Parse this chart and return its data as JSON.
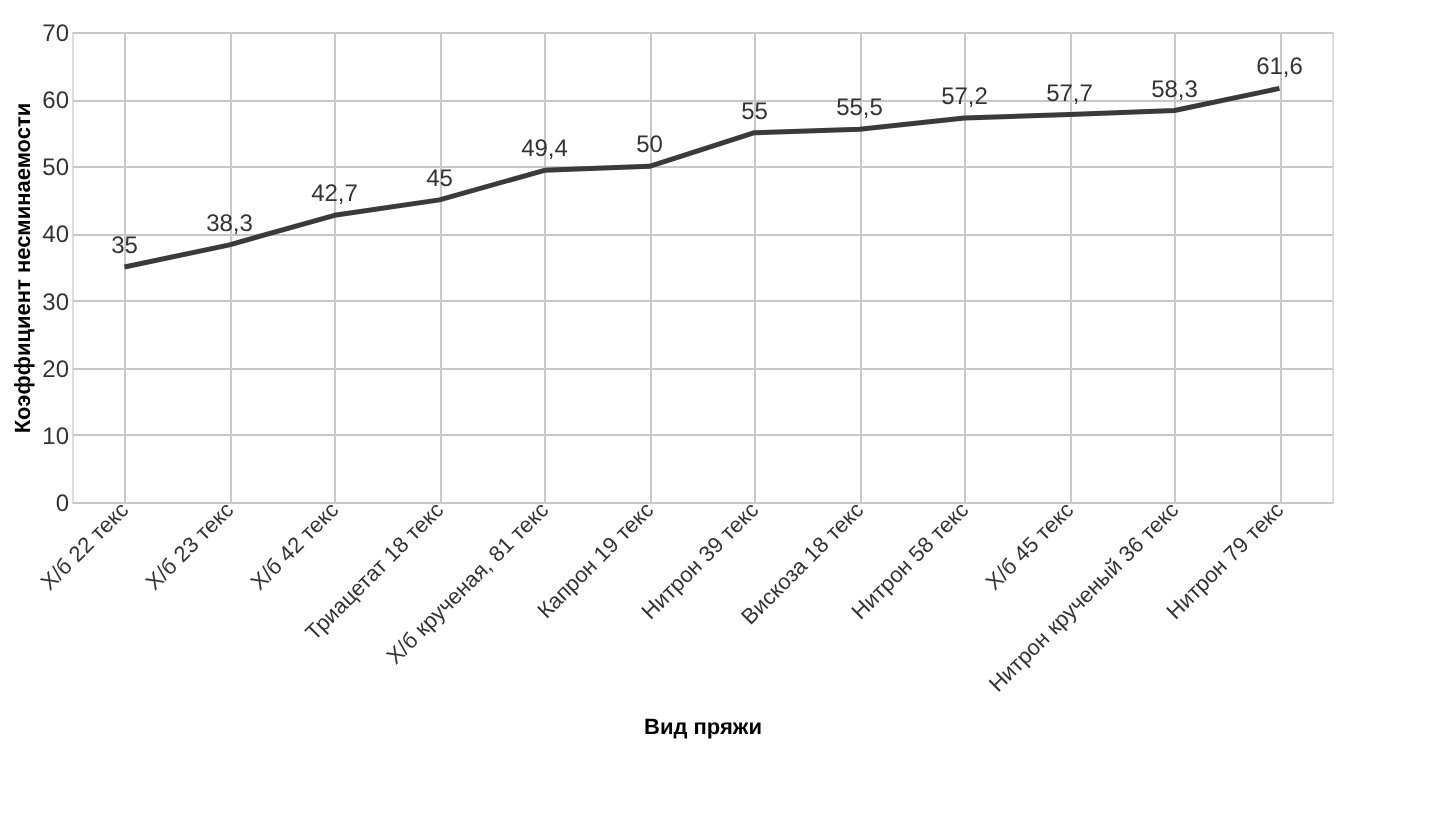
{
  "chart_data": {
    "type": "line",
    "xlabel": "Вид пряжи",
    "ylabel": "Коэффициент несминаемости",
    "categories": [
      "Х/б 22 текс",
      "Х/б 23 текс",
      "Х/б 42 текс",
      "Триацетат 18 текс",
      "Х/б крученая, 81 текс",
      "Капрон 19 текс",
      "Нитрон 39 текс",
      "Вискоза 18 текс",
      "Нитрон 58 текс",
      "Х/б 45 текс",
      "Нитрон крученый 36 текс",
      "Нитрон 79 текс"
    ],
    "series": [
      {
        "color": "#3a3a3a",
        "values": [
          35,
          38.3,
          42.7,
          45,
          49.4,
          50,
          55,
          55.5,
          57.2,
          57.7,
          58.3,
          61.6
        ],
        "value_labels": [
          "35",
          "38,3",
          "42,7",
          "45",
          "49,4",
          "50",
          "55",
          "55,5",
          "57,2",
          "57,7",
          "58,3",
          "61,6"
        ]
      }
    ],
    "ylim": [
      0,
      70
    ],
    "yticks": [
      0,
      10,
      20,
      30,
      40,
      50,
      60,
      70
    ],
    "grid": true,
    "marker": "none",
    "line_style": "solid"
  }
}
